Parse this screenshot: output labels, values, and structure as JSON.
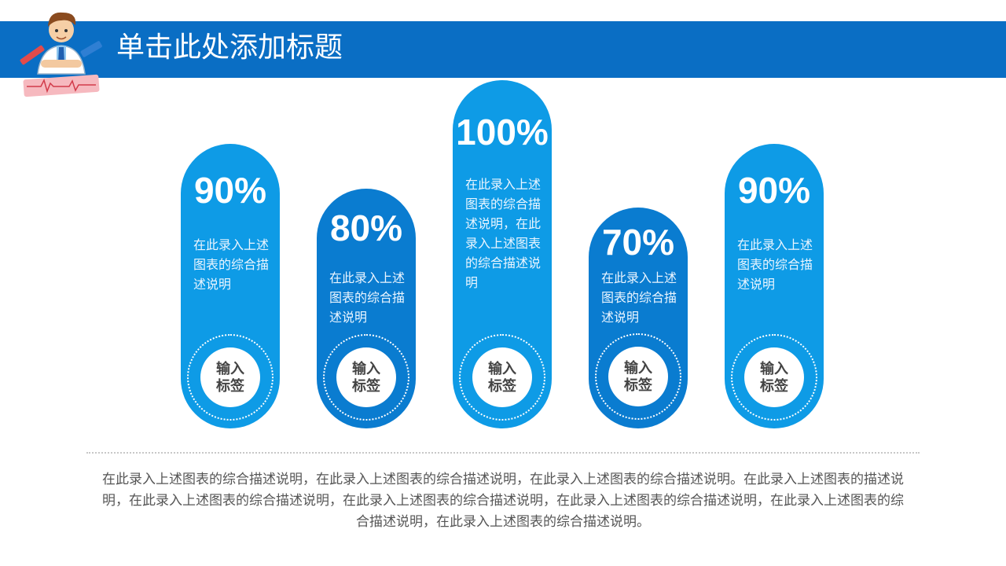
{
  "title": "单击此处添加标题",
  "colors": {
    "header": "#0a6ec4",
    "pill_light": "#0e9be6",
    "pill_dark": "#0a7cd0"
  },
  "pills": [
    {
      "percent": "90%",
      "value": 90,
      "description": "在此录入上述图表的综合描述说明",
      "tag": "输入标签"
    },
    {
      "percent": "80%",
      "value": 80,
      "description": "在此录入上述图表的综合描述说明",
      "tag": "输入标签"
    },
    {
      "percent": "100%",
      "value": 100,
      "description": "在此录入上述图表的综合描述说明，在此录入上述图表的综合描述说明",
      "tag": "输入标签"
    },
    {
      "percent": "70%",
      "value": 70,
      "description": "在此录入上述图表的综合描述说明",
      "tag": "输入标签"
    },
    {
      "percent": "90%",
      "value": 90,
      "description": "在此录入上述图表的综合描述说明",
      "tag": "输入标签"
    }
  ],
  "footer": "在此录入上述图表的综合描述说明，在此录入上述图表的综合描述说明，在此录入上述图表的综合描述说明。在此录入上述图表的描述说明，在此录入上述图表的综合描述说明，在此录入上述图表的综合描述说明，在此录入上述图表的综合描述说明，在此录入上述图表的综合描述说明，在此录入上述图表的综合描述说明。"
}
